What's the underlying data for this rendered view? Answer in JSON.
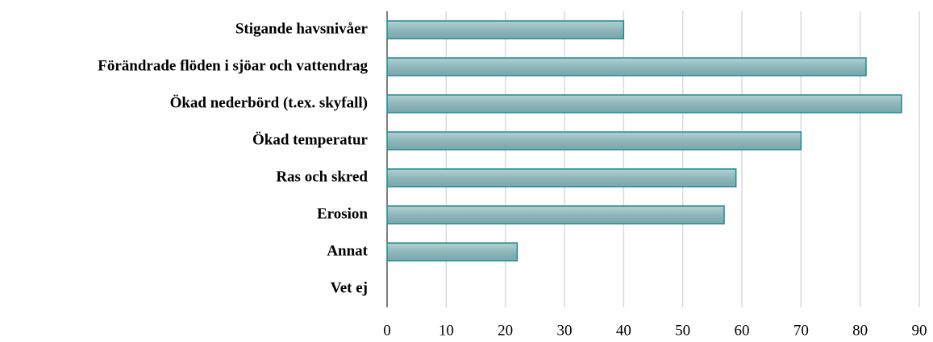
{
  "chart_data": {
    "type": "hbar",
    "categories": [
      "Stigande havsnivåer",
      "Förändrade flöden i sjöar och vattendrag",
      "Ökad nederbörd (t.ex. skyfall)",
      "Ökad temperatur",
      "Ras och skred",
      "Erosion",
      "Annat",
      "Vet ej"
    ],
    "values": [
      40,
      81,
      87,
      70,
      59,
      57,
      22,
      0
    ],
    "color": "#8fb6bb",
    "xlim": [
      0,
      90
    ],
    "xticks": [
      0,
      10,
      20,
      30,
      40,
      50,
      60,
      70,
      80,
      90
    ],
    "grid": true
  }
}
